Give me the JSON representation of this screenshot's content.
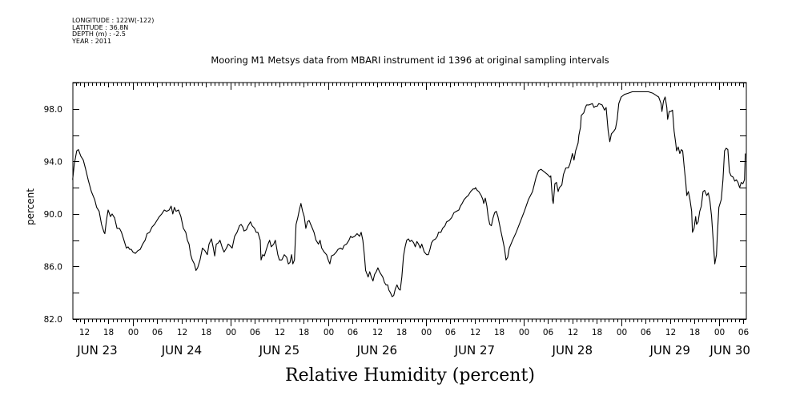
{
  "header": {
    "meta_lines": [
      "LONGITUDE : 122W(-122)",
      "LATITUDE : 36.8N",
      "DEPTH (m) : -2.5",
      "YEAR : 2011"
    ]
  },
  "chart_data": {
    "type": "line",
    "title": "Mooring M1 Metsys data from MBARI instrument id 1396 at original sampling intervals",
    "xlabel": "Relative Humidity (percent)",
    "ylabel": "percent",
    "x_units": "hours since JUN 23 00:00",
    "xlim": [
      9.25,
      174.75
    ],
    "ylim": [
      82,
      100
    ],
    "yticks": [
      82,
      86,
      90,
      94,
      98
    ],
    "ytick_labels": [
      "82.0",
      "86.0",
      "90.0",
      "94.0",
      "98.0"
    ],
    "xtick_hours_step": 6,
    "xtick_labels": [
      "12",
      "18",
      "00",
      "06",
      "12",
      "18",
      "00",
      "06",
      "12",
      "18",
      "00",
      "06",
      "12",
      "18",
      "00",
      "06",
      "12",
      "18",
      "00",
      "06",
      "12",
      "18",
      "00",
      "06",
      "12",
      "18",
      "00",
      "06",
      "12",
      "18",
      "00",
      "06"
    ],
    "day_labels": [
      "JUN 23",
      "JUN 24",
      "JUN 25",
      "JUN 26",
      "JUN 27",
      "JUN 28",
      "JUN 29",
      "JUN 30"
    ],
    "grid": false,
    "series": [
      {
        "name": "Relative Humidity",
        "color": "#000000",
        "x": [
          9.2,
          9.6,
          10.2,
          10.6,
          11.2,
          11.8,
          12.4,
          13.0,
          13.8,
          14.6,
          15.1,
          15.7,
          16.3,
          16.9,
          17.1,
          17.5,
          17.9,
          18.5,
          18.9,
          19.5,
          20.1,
          20.7,
          21.2,
          21.8,
          22.4,
          22.8,
          23.2,
          23.6,
          24.0,
          24.6,
          25.2,
          25.8,
          26.4,
          27.0,
          27.5,
          28.1,
          28.7,
          29.3,
          29.9,
          30.5,
          31.1,
          31.7,
          32.3,
          32.9,
          33.4,
          33.8,
          34.2,
          34.6,
          35.2,
          35.8,
          36.4,
          37.0,
          37.4,
          37.8,
          38.2,
          38.6,
          39.1,
          39.5,
          39.9,
          40.5,
          41.1,
          41.7,
          42.3,
          42.7,
          43.3,
          43.7,
          44.1,
          44.5,
          45.0,
          45.4,
          46.0,
          46.4,
          47.0,
          47.4,
          47.8,
          48.4,
          49.0,
          49.6,
          50.2,
          50.6,
          51.0,
          51.3,
          51.9,
          52.3,
          52.9,
          53.3,
          53.9,
          54.3,
          54.7,
          55.3,
          55.5,
          55.9,
          56.3,
          56.9,
          57.2,
          57.6,
          58.0,
          58.6,
          59.0,
          59.6,
          60.0,
          60.6,
          61.2,
          61.8,
          62.2,
          62.6,
          63.0,
          63.3,
          63.7,
          64.1,
          64.5,
          64.9,
          65.3,
          65.7,
          66.1,
          66.5,
          66.9,
          67.3,
          67.7,
          68.1,
          68.5,
          69.0,
          69.6,
          70.0,
          70.4,
          71.0,
          71.6,
          72.0,
          72.4,
          72.8,
          73.4,
          74.0,
          74.4,
          75.0,
          75.5,
          75.9,
          76.5,
          77.1,
          77.5,
          77.9,
          78.5,
          79.1,
          79.7,
          80.1,
          80.5,
          80.9,
          81.2,
          81.8,
          82.2,
          82.6,
          83.0,
          83.4,
          83.8,
          84.2,
          84.6,
          85.0,
          85.4,
          85.8,
          86.2,
          86.6,
          86.9,
          87.3,
          87.7,
          88.1,
          88.5,
          88.9,
          89.3,
          89.7,
          90.1,
          90.5,
          90.9,
          91.3,
          91.7,
          92.1,
          92.5,
          93.0,
          93.4,
          93.8,
          94.2,
          94.6,
          95.0,
          95.6,
          96.2,
          96.6,
          97.0,
          97.4,
          97.8,
          98.4,
          98.8,
          99.1,
          99.7,
          100.1,
          100.7,
          101.1,
          101.7,
          102.3,
          102.9,
          103.5,
          104.1,
          104.5,
          104.9,
          105.4,
          106.0,
          106.4,
          107.0,
          107.6,
          108.0,
          108.2,
          108.6,
          109.0,
          109.6,
          110.0,
          110.2,
          110.6,
          111.0,
          111.3,
          111.7,
          112.1,
          112.5,
          112.9,
          113.3,
          113.7,
          114.1,
          114.5,
          114.9,
          115.3,
          115.7,
          116.1,
          116.5,
          117.3,
          118.2,
          119.2,
          120.2,
          121.2,
          122.2,
          123.1,
          123.7,
          124.3,
          125.1,
          125.9,
          126.5,
          126.7,
          127.1,
          127.3,
          127.7,
          128.1,
          128.5,
          128.8,
          129.4,
          129.8,
          130.4,
          131.0,
          131.4,
          131.8,
          132.0,
          132.4,
          132.8,
          133.4,
          133.6,
          134.0,
          134.2,
          134.8,
          135.2,
          135.5,
          136.1,
          136.9,
          137.3,
          137.7,
          138.1,
          138.5,
          139.3,
          139.9,
          140.3,
          140.8,
          141.2,
          141.6,
          142.2,
          142.6,
          143.0,
          143.4,
          144.0,
          144.8,
          145.8,
          146.7,
          147.7,
          148.7,
          149.7,
          150.7,
          151.7,
          152.7,
          153.2,
          153.8,
          154.0,
          154.4,
          154.8,
          155.2,
          155.4,
          155.8,
          156.2,
          156.6,
          157.0,
          157.4,
          157.6,
          158.0,
          158.4,
          158.8,
          159.1,
          159.5,
          159.9,
          160.1,
          160.5,
          160.9,
          161.3,
          161.5,
          161.9,
          162.3,
          162.5,
          162.9,
          163.3,
          163.7,
          164.1,
          164.5,
          165.0,
          165.4,
          165.8,
          166.2,
          166.6,
          167.0,
          167.4,
          167.6,
          168.0,
          168.6,
          169.0,
          169.4,
          169.8,
          170.2,
          170.6,
          171.0,
          171.5,
          171.9,
          172.3,
          172.7,
          173.1,
          173.5,
          173.9,
          174.3,
          174.5
        ],
        "y": [
          92.6,
          93.8,
          94.8,
          94.9,
          94.4,
          94.1,
          93.4,
          92.6,
          91.7,
          91.1,
          90.5,
          90.2,
          89.2,
          88.6,
          88.5,
          89.5,
          90.3,
          89.8,
          90.0,
          89.7,
          88.9,
          88.9,
          88.6,
          88.0,
          87.4,
          87.5,
          87.3,
          87.3,
          87.1,
          87.0,
          87.2,
          87.3,
          87.7,
          88.0,
          88.5,
          88.6,
          89.0,
          89.2,
          89.5,
          89.8,
          90.0,
          90.3,
          90.2,
          90.3,
          90.6,
          90.0,
          90.5,
          90.2,
          90.3,
          89.8,
          88.9,
          88.6,
          88.0,
          87.7,
          86.9,
          86.5,
          86.2,
          85.7,
          85.9,
          86.5,
          87.4,
          87.2,
          86.9,
          87.7,
          88.1,
          87.5,
          86.8,
          87.7,
          87.8,
          88.0,
          87.4,
          87.1,
          87.4,
          87.7,
          87.6,
          87.4,
          88.3,
          88.6,
          89.1,
          89.2,
          89.0,
          88.7,
          88.8,
          89.1,
          89.4,
          89.1,
          88.9,
          88.6,
          88.6,
          88.0,
          86.5,
          86.9,
          86.8,
          87.4,
          87.7,
          88.0,
          87.5,
          87.7,
          88.0,
          86.9,
          86.5,
          86.5,
          86.9,
          86.7,
          86.2,
          86.3,
          86.9,
          86.2,
          86.5,
          89.2,
          89.7,
          90.3,
          90.8,
          90.2,
          89.8,
          88.9,
          89.4,
          89.5,
          89.2,
          88.9,
          88.6,
          88.0,
          87.7,
          88.0,
          87.4,
          87.1,
          86.9,
          86.5,
          86.2,
          86.8,
          86.9,
          87.1,
          87.3,
          87.4,
          87.3,
          87.6,
          87.7,
          88.0,
          88.3,
          88.2,
          88.3,
          88.5,
          88.3,
          88.6,
          88.0,
          86.8,
          85.7,
          85.2,
          85.6,
          85.2,
          84.9,
          85.4,
          85.6,
          85.9,
          85.6,
          85.4,
          85.2,
          84.8,
          84.6,
          84.6,
          84.2,
          84.0,
          83.7,
          83.8,
          84.3,
          84.6,
          84.3,
          84.2,
          85.2,
          86.8,
          87.5,
          88.0,
          88.1,
          87.9,
          88.0,
          87.8,
          87.5,
          87.9,
          87.7,
          87.4,
          87.7,
          87.1,
          86.9,
          86.9,
          87.3,
          87.8,
          88.0,
          88.1,
          88.3,
          88.6,
          88.6,
          88.9,
          89.1,
          89.4,
          89.5,
          89.7,
          90.1,
          90.2,
          90.3,
          90.6,
          90.8,
          91.1,
          91.3,
          91.4,
          91.7,
          91.9,
          91.9,
          92.0,
          91.8,
          91.7,
          91.4,
          91.1,
          90.8,
          91.2,
          90.6,
          89.8,
          89.2,
          89.1,
          89.7,
          90.1,
          90.2,
          89.8,
          89.2,
          88.6,
          88.0,
          87.4,
          86.5,
          86.7,
          87.4,
          88.0,
          88.6,
          89.4,
          90.2,
          91.1,
          91.7,
          92.8,
          93.3,
          93.4,
          93.2,
          93.0,
          92.8,
          92.9,
          91.1,
          90.8,
          92.3,
          92.4,
          91.7,
          92.0,
          92.2,
          93.0,
          93.5,
          93.5,
          93.8,
          94.3,
          94.6,
          94.1,
          94.8,
          95.4,
          96.0,
          96.6,
          97.5,
          97.7,
          98.1,
          98.3,
          98.3,
          98.4,
          98.1,
          98.2,
          98.2,
          98.4,
          98.3,
          97.9,
          98.1,
          96.3,
          95.5,
          96.1,
          96.3,
          96.5,
          97.2,
          98.4,
          98.9,
          99.1,
          99.2,
          99.3,
          99.3,
          99.3,
          99.3,
          99.3,
          99.2,
          99.0,
          98.9,
          98.4,
          97.8,
          98.6,
          98.9,
          98.1,
          97.2,
          97.8,
          97.8,
          97.9,
          96.3,
          95.4,
          94.8,
          95.1,
          94.6,
          94.9,
          94.8,
          93.5,
          92.3,
          91.4,
          91.7,
          91.1,
          90.2,
          88.6,
          88.9,
          89.8,
          89.2,
          89.4,
          90.2,
          90.6,
          91.7,
          91.8,
          91.4,
          91.6,
          91.0,
          89.8,
          88.0,
          86.2,
          86.9,
          88.3,
          90.5,
          91.1,
          92.6,
          94.8,
          95.0,
          94.9,
          93.2,
          92.9,
          92.8,
          92.5,
          92.6,
          92.4,
          92.0,
          92.4,
          92.3,
          92.6,
          94.6
        ]
      }
    ]
  }
}
